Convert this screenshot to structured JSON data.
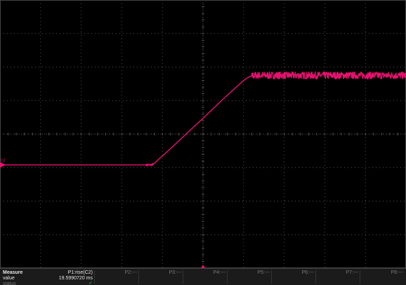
{
  "colors": {
    "background": "#000000",
    "grid": "#6e6e6e",
    "trace": "#e6116e",
    "status_ok": "#28c840"
  },
  "icons": {
    "channel_ground_marker": "arrow-right-marker",
    "trigger_marker": "triangle-up-marker"
  },
  "display": {
    "h_divisions": 10,
    "v_divisions": 8
  },
  "channel_marker_label": "C2",
  "chart_data": {
    "type": "line",
    "title": "",
    "xlabel": "",
    "ylabel": "",
    "xlim": [
      0,
      10
    ],
    "ylim": [
      0,
      8
    ],
    "grid": true,
    "series": [
      {
        "points": [
          [
            0,
            3.08
          ],
          [
            3.66,
            3.08
          ],
          [
            3.72,
            3.08
          ],
          [
            3.78,
            3.1
          ],
          [
            3.9,
            3.24
          ],
          [
            4.05,
            3.4
          ],
          [
            4.3,
            3.68
          ],
          [
            4.6,
            4.02
          ],
          [
            5.0,
            4.47
          ],
          [
            5.5,
            5.05
          ],
          [
            6.0,
            5.6
          ],
          [
            6.15,
            5.72
          ],
          [
            6.3,
            5.75
          ],
          [
            10,
            5.75
          ]
        ],
        "noise_after_x": 6.2,
        "noise_amplitude": 0.035
      }
    ]
  },
  "measure": {
    "header": "Measure",
    "row_value_label": "value",
    "row_status_label": "status",
    "params": [
      {
        "label": "P1:rise(C2)",
        "value": "19.5990720 ms",
        "status": "✓"
      },
      {
        "label": "P2:---",
        "value": "",
        "status": ""
      },
      {
        "label": "P3:---",
        "value": "",
        "status": ""
      },
      {
        "label": "P4:---",
        "value": "",
        "status": ""
      },
      {
        "label": "P5:---",
        "value": "",
        "status": ""
      },
      {
        "label": "P6:---",
        "value": "",
        "status": ""
      },
      {
        "label": "P7:---",
        "value": "",
        "status": ""
      },
      {
        "label": "P8:---",
        "value": "",
        "status": ""
      }
    ]
  }
}
